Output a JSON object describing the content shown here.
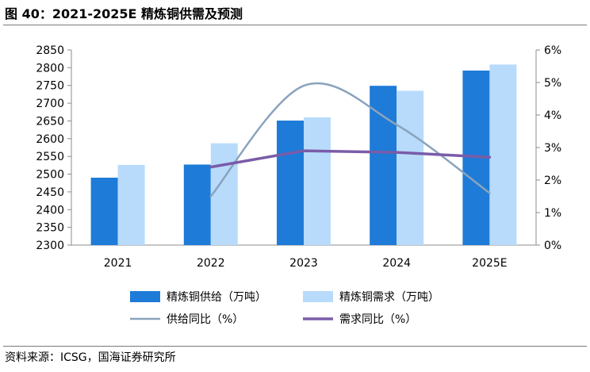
{
  "title": "图 40：2021-2025E 精炼铜供需及预测",
  "source": "资料来源：ICSG，国海证券研究所",
  "chart_data": {
    "type": "bar",
    "categories": [
      "2021",
      "2022",
      "2023",
      "2024",
      "2025E"
    ],
    "series": [
      {
        "name": "精炼铜供给（万吨）",
        "kind": "bar",
        "axis": "left",
        "color": "#1e7bd8",
        "values": [
          2490,
          2527,
          2651,
          2749,
          2792
        ]
      },
      {
        "name": "精炼铜需求（万吨）",
        "kind": "bar",
        "axis": "left",
        "color": "#b8dbfb",
        "values": [
          2526,
          2587,
          2660,
          2735,
          2809
        ]
      },
      {
        "name": "供给同比（%）",
        "kind": "line",
        "axis": "right",
        "color": "#8aa3bd",
        "values": [
          null,
          1.5,
          4.9,
          3.7,
          1.6
        ]
      },
      {
        "name": "需求同比（%）",
        "kind": "line",
        "axis": "right",
        "color": "#7a5ca8",
        "values": [
          null,
          2.4,
          2.9,
          2.85,
          2.7
        ]
      }
    ],
    "y_left": {
      "min": 2300,
      "max": 2850,
      "ticks": [
        "2300",
        "2350",
        "2400",
        "2450",
        "2500",
        "2550",
        "2600",
        "2650",
        "2700",
        "2750",
        "2800",
        "2850"
      ]
    },
    "y_right": {
      "min": 0,
      "max": 6,
      "ticks": [
        "0%",
        "1%",
        "2%",
        "3%",
        "4%",
        "5%",
        "6%"
      ]
    },
    "legend_position": "bottom",
    "grid": false
  }
}
